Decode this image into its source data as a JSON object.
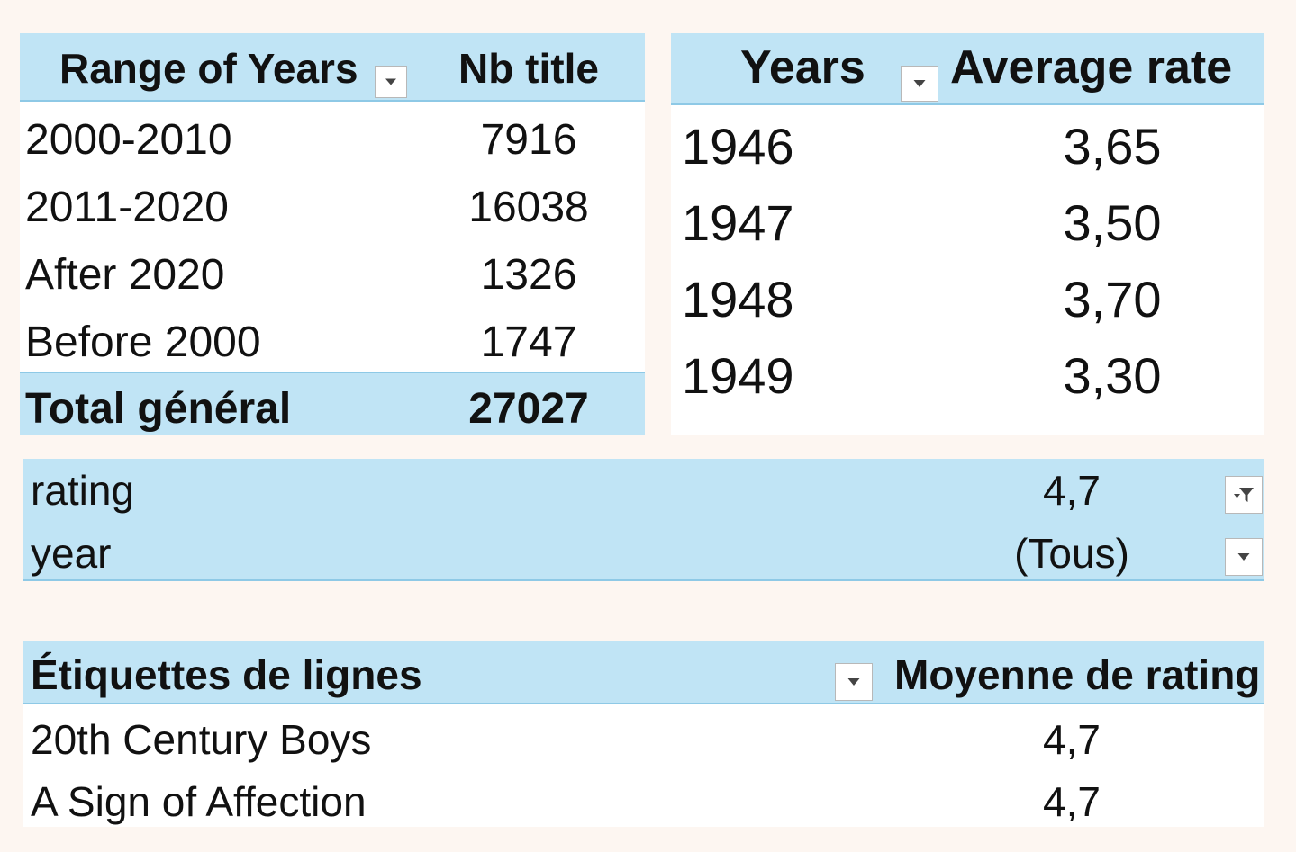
{
  "range_table": {
    "header_range": "Range of Years",
    "header_count": "Nb title",
    "rows": [
      {
        "label": "2000-2010",
        "value": "7916"
      },
      {
        "label": "2011-2020",
        "value": "16038"
      },
      {
        "label": "After 2020",
        "value": "1326"
      },
      {
        "label": "Before 2000",
        "value": "1747"
      }
    ],
    "total_label": "Total général",
    "total_value": "27027"
  },
  "years_table": {
    "header_years": "Years",
    "header_avg": "Average rate",
    "rows": [
      {
        "year": "1946",
        "avg": "3,65"
      },
      {
        "year": "1947",
        "avg": "3,50"
      },
      {
        "year": "1948",
        "avg": "3,70"
      },
      {
        "year": "1949",
        "avg": "3,30"
      }
    ]
  },
  "filters": {
    "rating_label": "rating",
    "rating_value": "4,7",
    "year_label": "year",
    "year_value": "(Tous)"
  },
  "pivot": {
    "header_rows": "Étiquettes de lignes",
    "header_value": "Moyenne de rating",
    "rows": [
      {
        "label": "20th Century Boys",
        "value": "4,7"
      },
      {
        "label": "A Sign of Affection",
        "value": "4,7"
      }
    ]
  },
  "colors": {
    "header_fill": "#c0e4f5",
    "header_border": "#8ec9e6",
    "page_background": "#fdf6f1"
  },
  "icons": {
    "dropdown": "chevron-down-icon",
    "filter": "filter-icon"
  }
}
